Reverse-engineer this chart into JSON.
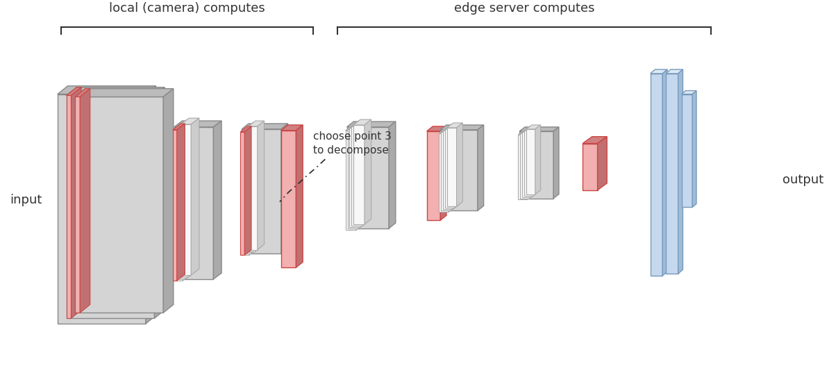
{
  "bg_color": "#ffffff",
  "label_local": "local (camera) computes",
  "label_edge": "edge server computes",
  "label_input": "input",
  "label_output": "output",
  "label_decompose": "choose point 3\nto decompose",
  "gray_face": "#d4d4d4",
  "gray_edge": "#888888",
  "gray_side": "#aaaaaa",
  "gray_top": "#bbbbbb",
  "red_face": "#f2b0b0",
  "red_edge": "#cc4444",
  "red_side": "#c07070",
  "red_top": "#d08080",
  "blue_face": "#c5d8ee",
  "blue_edge": "#7799bb",
  "blue_side": "#a0bcd8",
  "blue_top": "#dce9f5",
  "white_face": "#f8f8f8",
  "white_edge": "#aaaaaa",
  "white_side": "#cccccc",
  "white_top": "#e0e0e0",
  "bracket_color": "#333333",
  "text_color": "#333333",
  "title_fontsize": 13,
  "label_fontsize": 13,
  "decompose_fontsize": 11
}
